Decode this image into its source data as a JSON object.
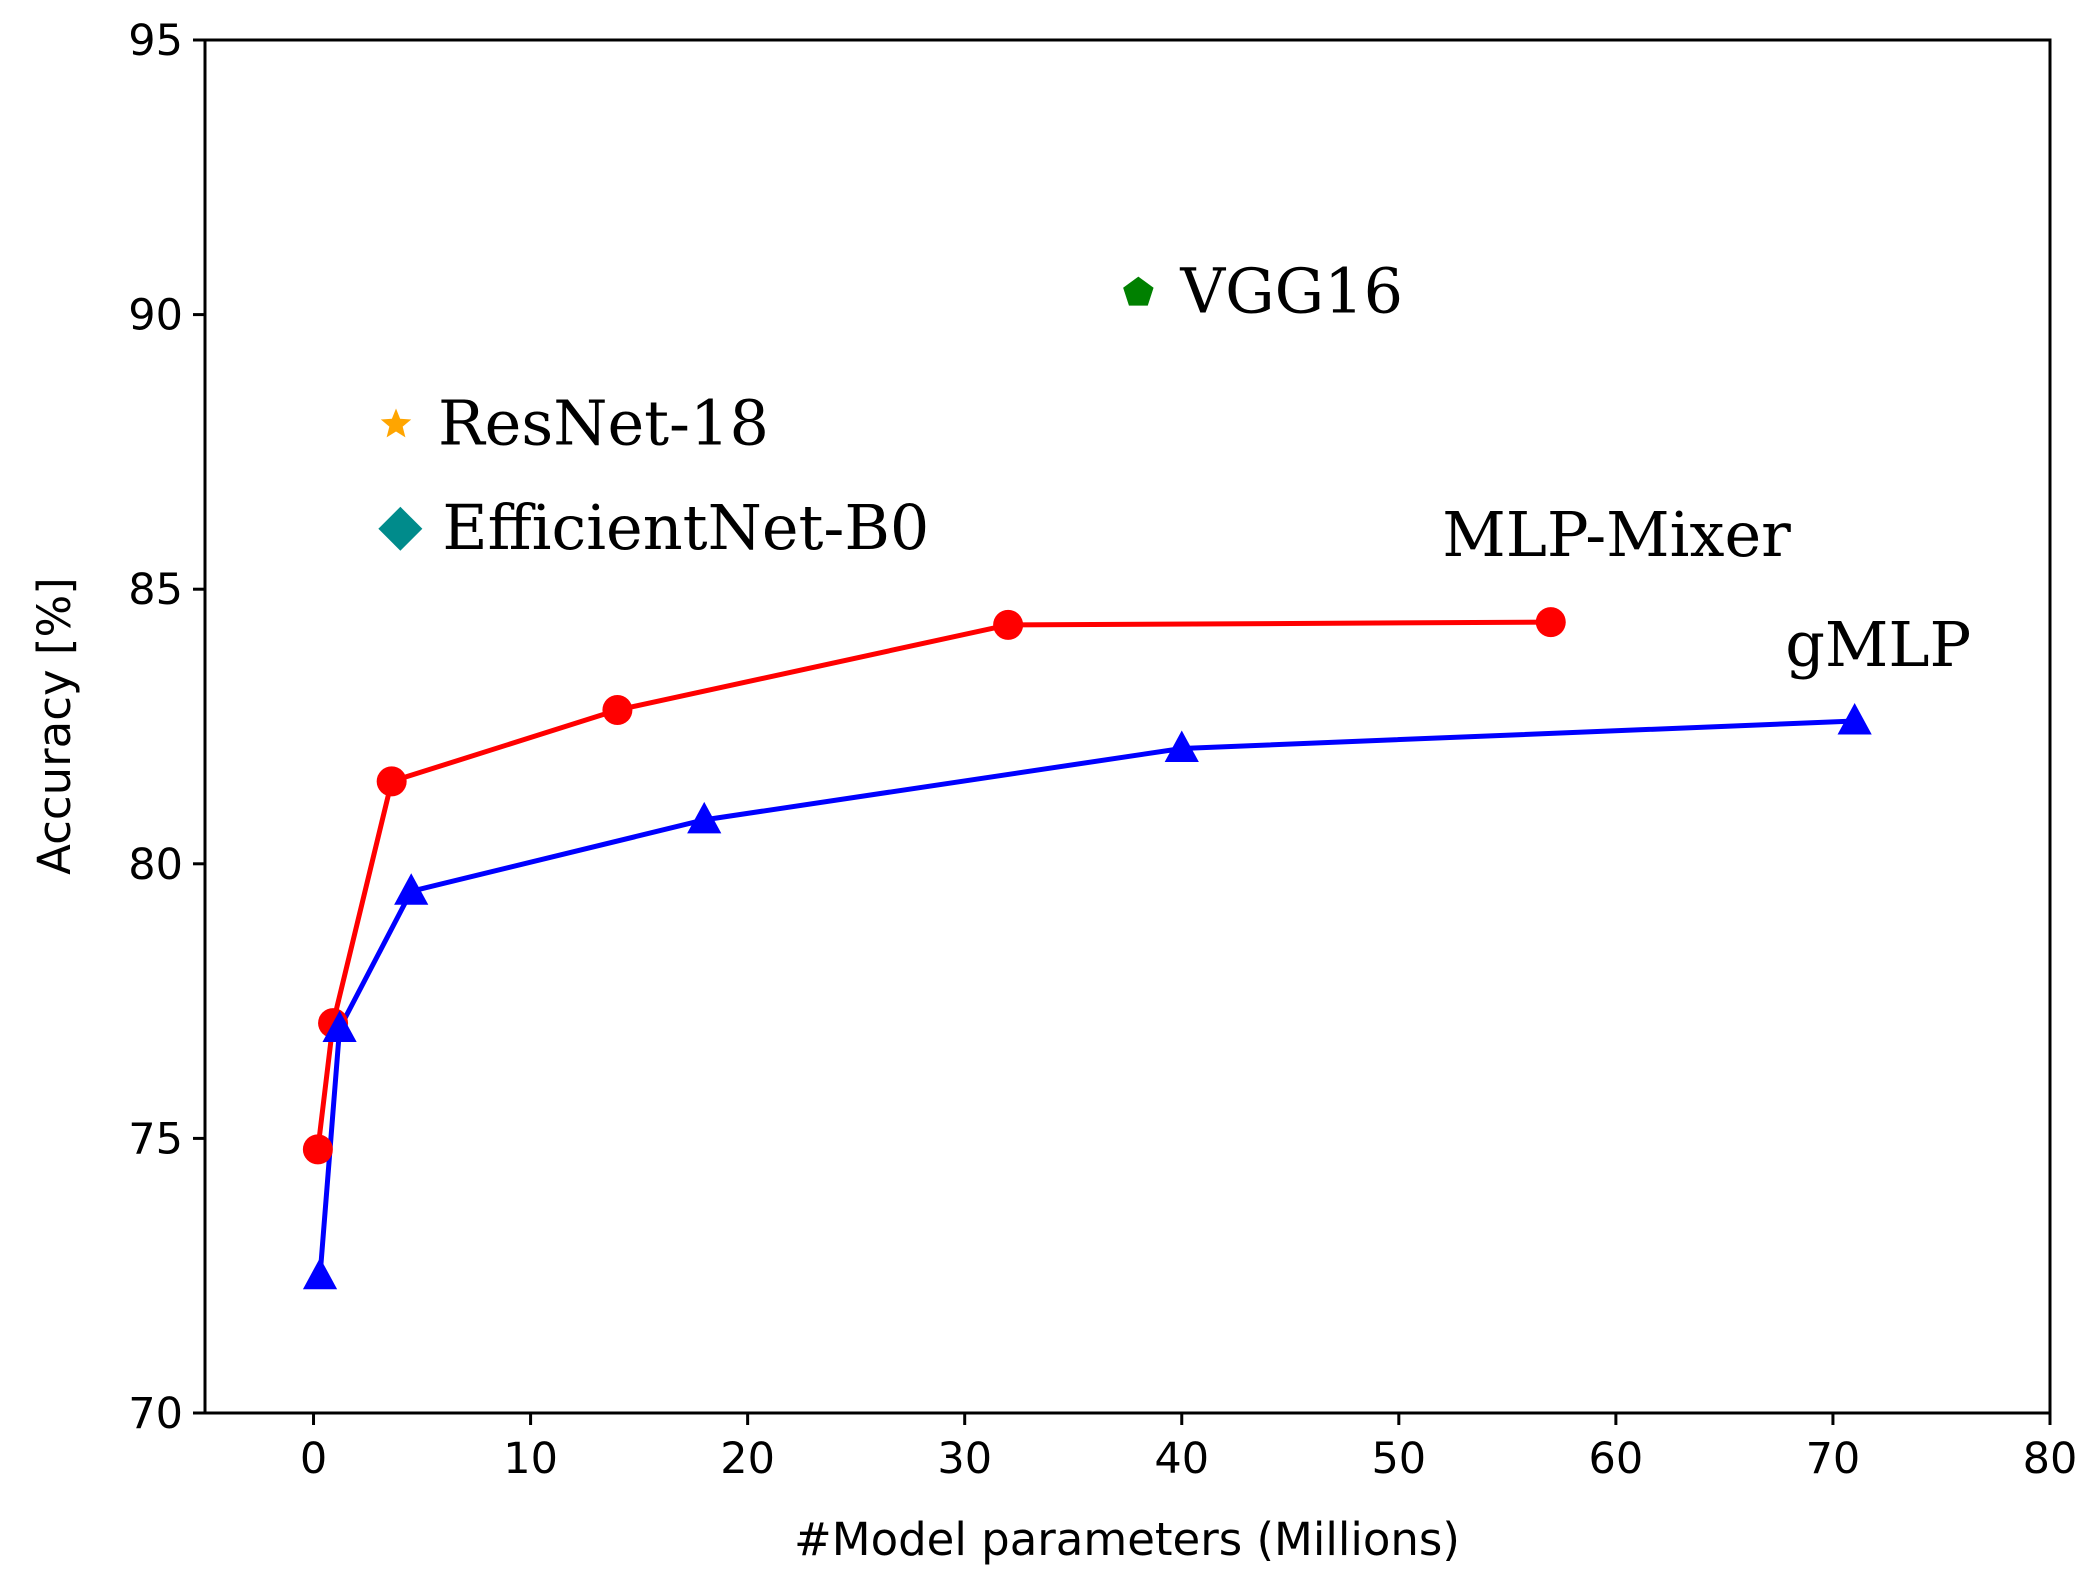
{
  "chart_data": {
    "type": "line",
    "xlabel": "#Model parameters (Millions)",
    "ylabel": "Accuracy [%]",
    "xlim": [
      -5,
      80
    ],
    "ylim": [
      70,
      95
    ],
    "xticks": [
      0,
      10,
      20,
      30,
      40,
      50,
      60,
      70,
      80
    ],
    "yticks": [
      70,
      75,
      80,
      85,
      90,
      95
    ],
    "series": [
      {
        "name": "MLP-Mixer",
        "color": "#ff0000",
        "marker": "circle",
        "x": [
          0.2,
          0.9,
          3.6,
          14.0,
          32.0,
          57.0
        ],
        "y": [
          74.8,
          77.1,
          81.5,
          82.8,
          84.35,
          84.4
        ]
      },
      {
        "name": "gMLP",
        "color": "#0000ff",
        "marker": "triangle",
        "x": [
          0.3,
          1.2,
          4.5,
          18.0,
          40.0,
          71.0
        ],
        "y": [
          72.5,
          77.0,
          79.5,
          80.8,
          82.1,
          82.6
        ]
      }
    ],
    "points": [
      {
        "name": "VGG16",
        "label": "VGG16",
        "marker": "pentagon",
        "color": "#008000",
        "x": 38.0,
        "y": 90.4
      },
      {
        "name": "ResNet-18",
        "label": "ResNet-18",
        "marker": "star",
        "color": "#ffa500",
        "x": 3.8,
        "y": 88.0
      },
      {
        "name": "EfficientNet-B0",
        "label": "EfficientNet-B0",
        "marker": "diamond",
        "color": "#008b8b",
        "x": 4.0,
        "y": 86.1
      }
    ],
    "annotations": [
      {
        "text": "MLP-Mixer",
        "x": 52.0,
        "y": 85.6
      },
      {
        "text": "gMLP",
        "x": 67.8,
        "y": 83.6
      }
    ]
  }
}
